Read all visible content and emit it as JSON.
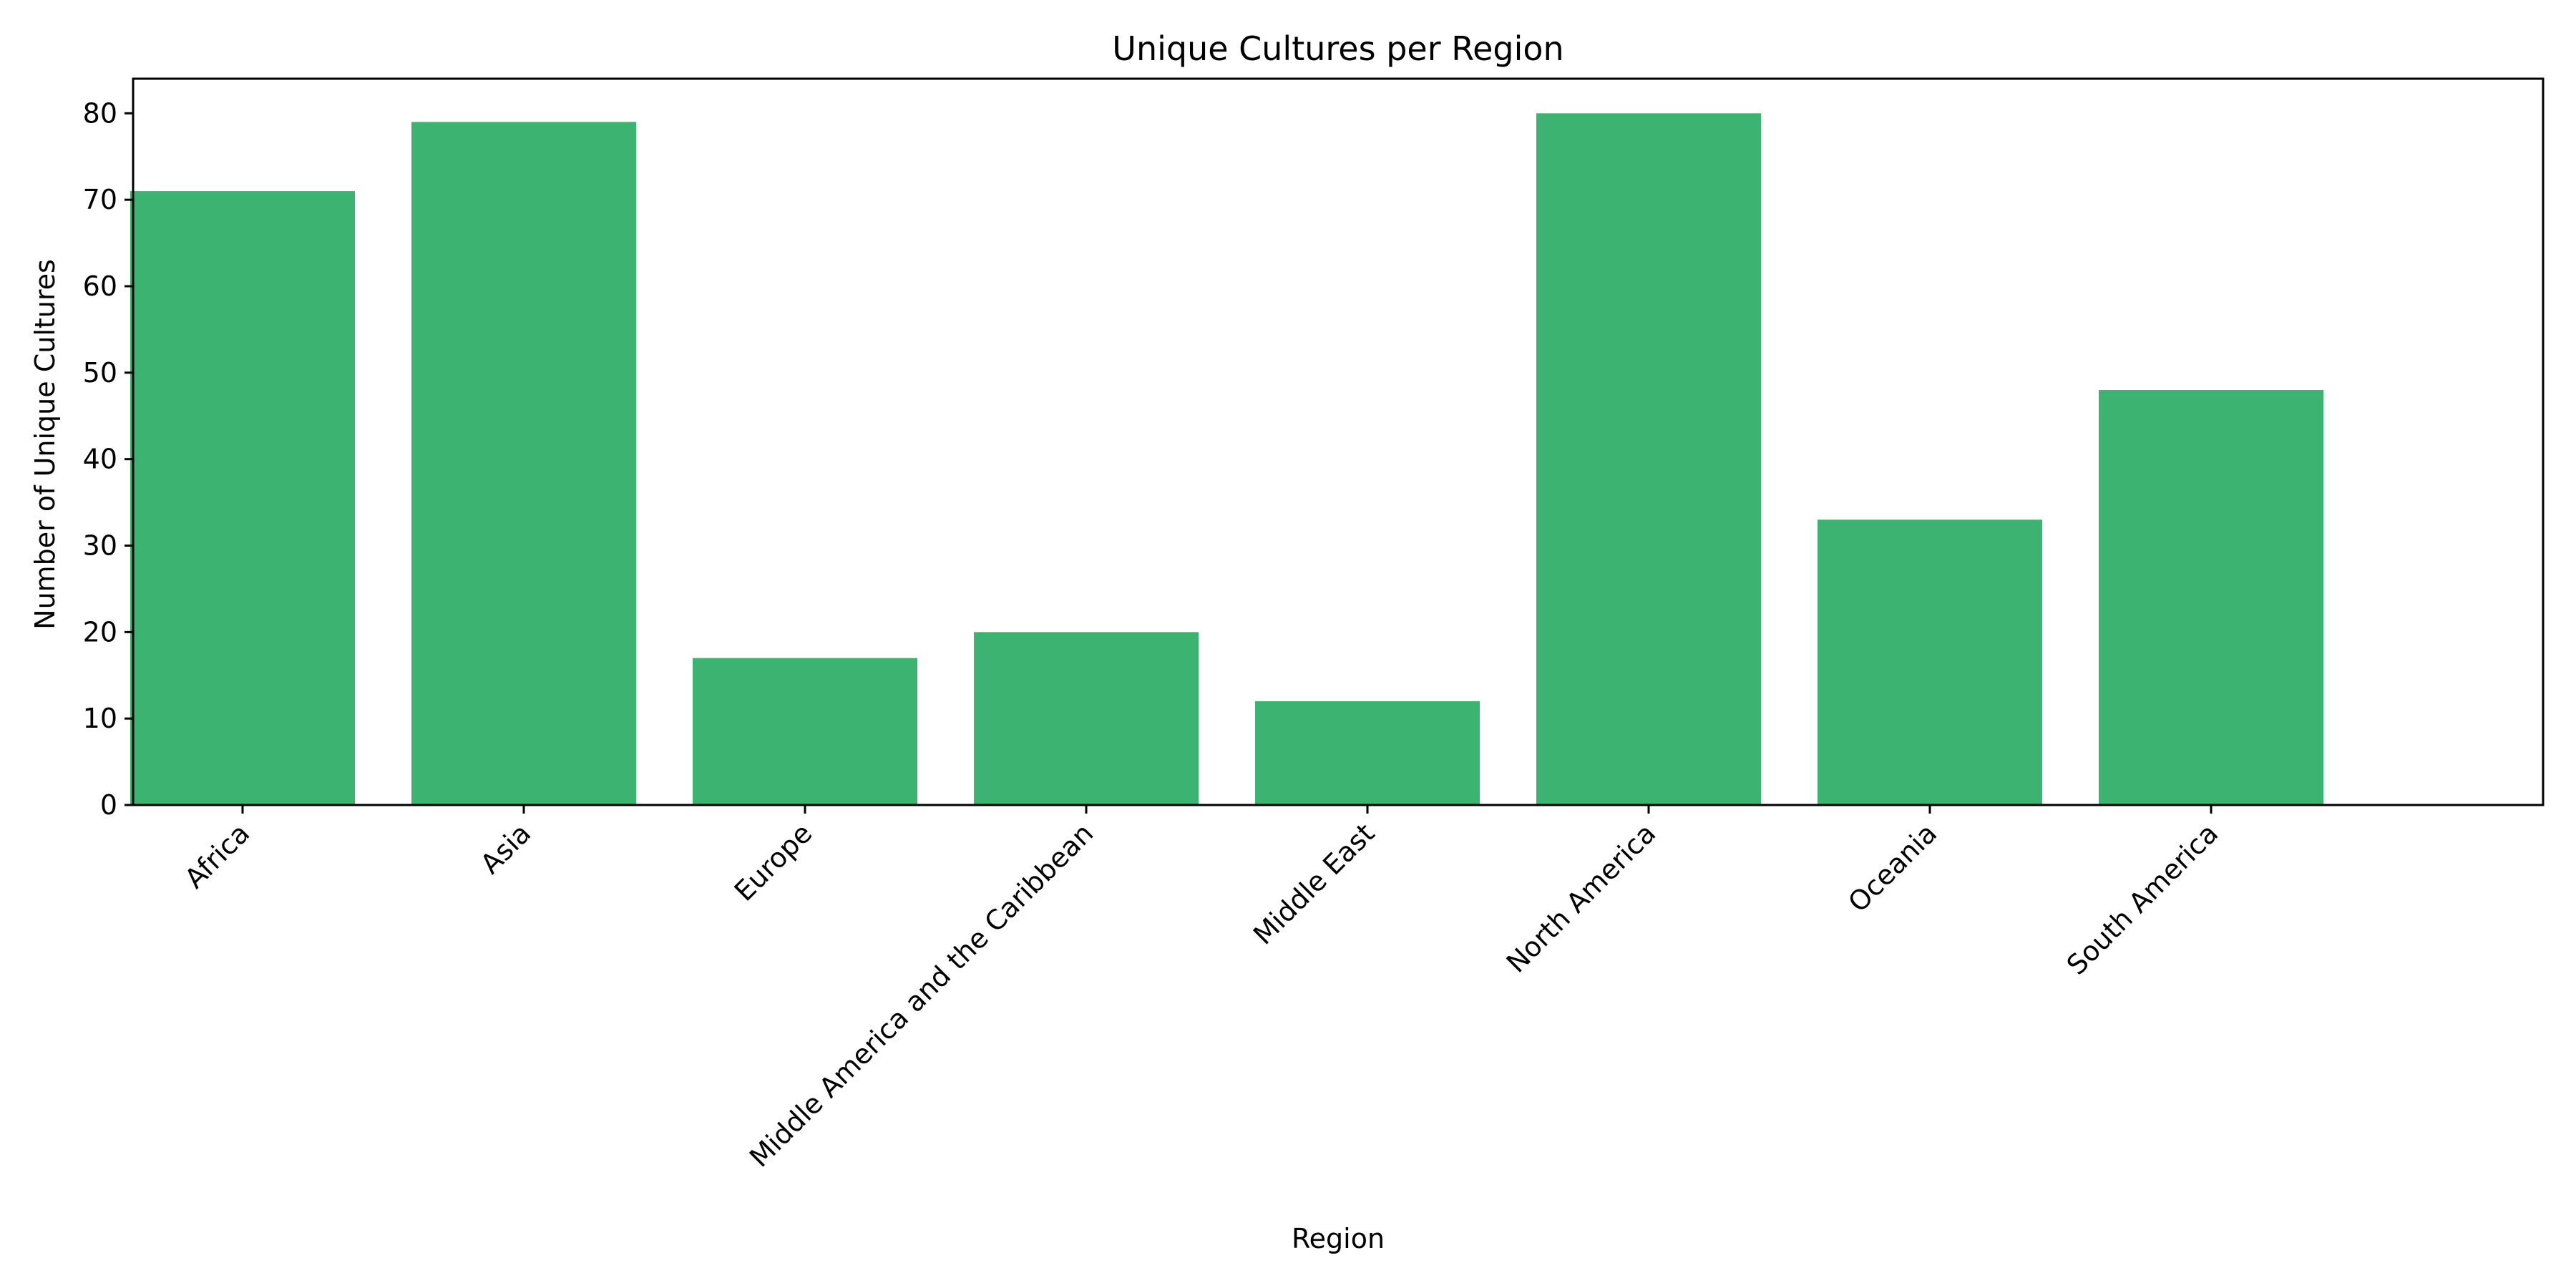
{
  "chart_data": {
    "type": "bar",
    "title": "Unique Cultures per Region",
    "xlabel": "Region",
    "ylabel": "Number of Unique Cultures",
    "categories": [
      "Africa",
      "Asia",
      "Europe",
      "Middle America and the Caribbean",
      "Middle East",
      "North America",
      "Oceania",
      "South America"
    ],
    "values": [
      71,
      79,
      17,
      20,
      12,
      80,
      33,
      48
    ],
    "ylim": [
      0,
      84
    ],
    "yticks": [
      0,
      10,
      20,
      30,
      40,
      50,
      60,
      70,
      80
    ],
    "bar_color": "#3cb371",
    "grid": false,
    "legend": "none"
  }
}
